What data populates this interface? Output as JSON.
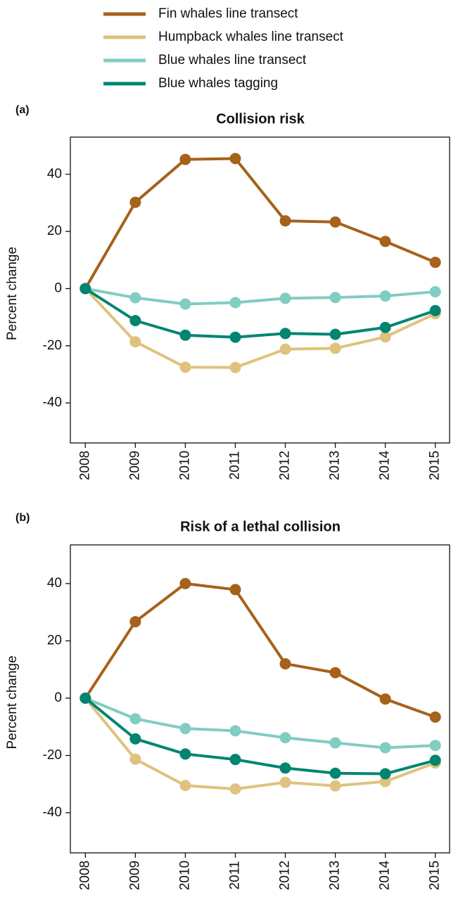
{
  "chart_data": [
    {
      "type": "line",
      "label": "(a)",
      "title": "Collision risk",
      "ylabel": "Percent change",
      "x": [
        2008,
        2009,
        2010,
        2011,
        2012,
        2013,
        2014,
        2015
      ],
      "xlim": [
        2007.7,
        2015.3
      ],
      "xticks": [
        2008,
        2009,
        2010,
        2011,
        2012,
        2013,
        2014,
        2015
      ],
      "ylim": [
        -54,
        53
      ],
      "yticks": [
        -40,
        -20,
        0,
        20,
        40
      ],
      "series": [
        {
          "name": "Fin whales line transect",
          "color": "#a6611a",
          "values": [
            0,
            30.2,
            45.2,
            45.5,
            23.7,
            23.3,
            16.5,
            9.2
          ]
        },
        {
          "name": "Humpback whales line transect",
          "color": "#dfc27d",
          "values": [
            0,
            -18.6,
            -27.5,
            -27.6,
            -21.2,
            -20.9,
            -16.9,
            -8.8
          ]
        },
        {
          "name": "Blue whales line transect",
          "color": "#80cdc1",
          "values": [
            0,
            -3.2,
            -5.4,
            -4.9,
            -3.4,
            -3.1,
            -2.6,
            -1.1
          ]
        },
        {
          "name": "Blue whales tagging",
          "color": "#018571",
          "values": [
            0,
            -11.2,
            -16.3,
            -17.0,
            -15.7,
            -16.0,
            -13.6,
            -7.7
          ]
        }
      ]
    },
    {
      "type": "line",
      "label": "(b)",
      "title": "Risk of a lethal collision",
      "ylabel": "Percent change",
      "x": [
        2008,
        2009,
        2010,
        2011,
        2012,
        2013,
        2014,
        2015
      ],
      "xlim": [
        2007.7,
        2015.3
      ],
      "xticks": [
        2008,
        2009,
        2010,
        2011,
        2012,
        2013,
        2014,
        2015
      ],
      "ylim": [
        -54,
        53.5
      ],
      "yticks": [
        -40,
        -20,
        0,
        20,
        40
      ],
      "series": [
        {
          "color": "#a6611a",
          "values": [
            0,
            26.7,
            40.0,
            37.9,
            12.0,
            8.9,
            -0.3,
            -6.6
          ]
        },
        {
          "color": "#dfc27d",
          "values": [
            0,
            -21.3,
            -30.5,
            -31.7,
            -29.4,
            -30.6,
            -29.1,
            -22.6
          ]
        },
        {
          "color": "#80cdc1",
          "values": [
            0,
            -7.2,
            -10.6,
            -11.4,
            -13.8,
            -15.6,
            -17.3,
            -16.5
          ]
        },
        {
          "color": "#018571",
          "values": [
            0,
            -14.2,
            -19.5,
            -21.4,
            -24.4,
            -26.2,
            -26.4,
            -21.7
          ]
        }
      ]
    }
  ]
}
